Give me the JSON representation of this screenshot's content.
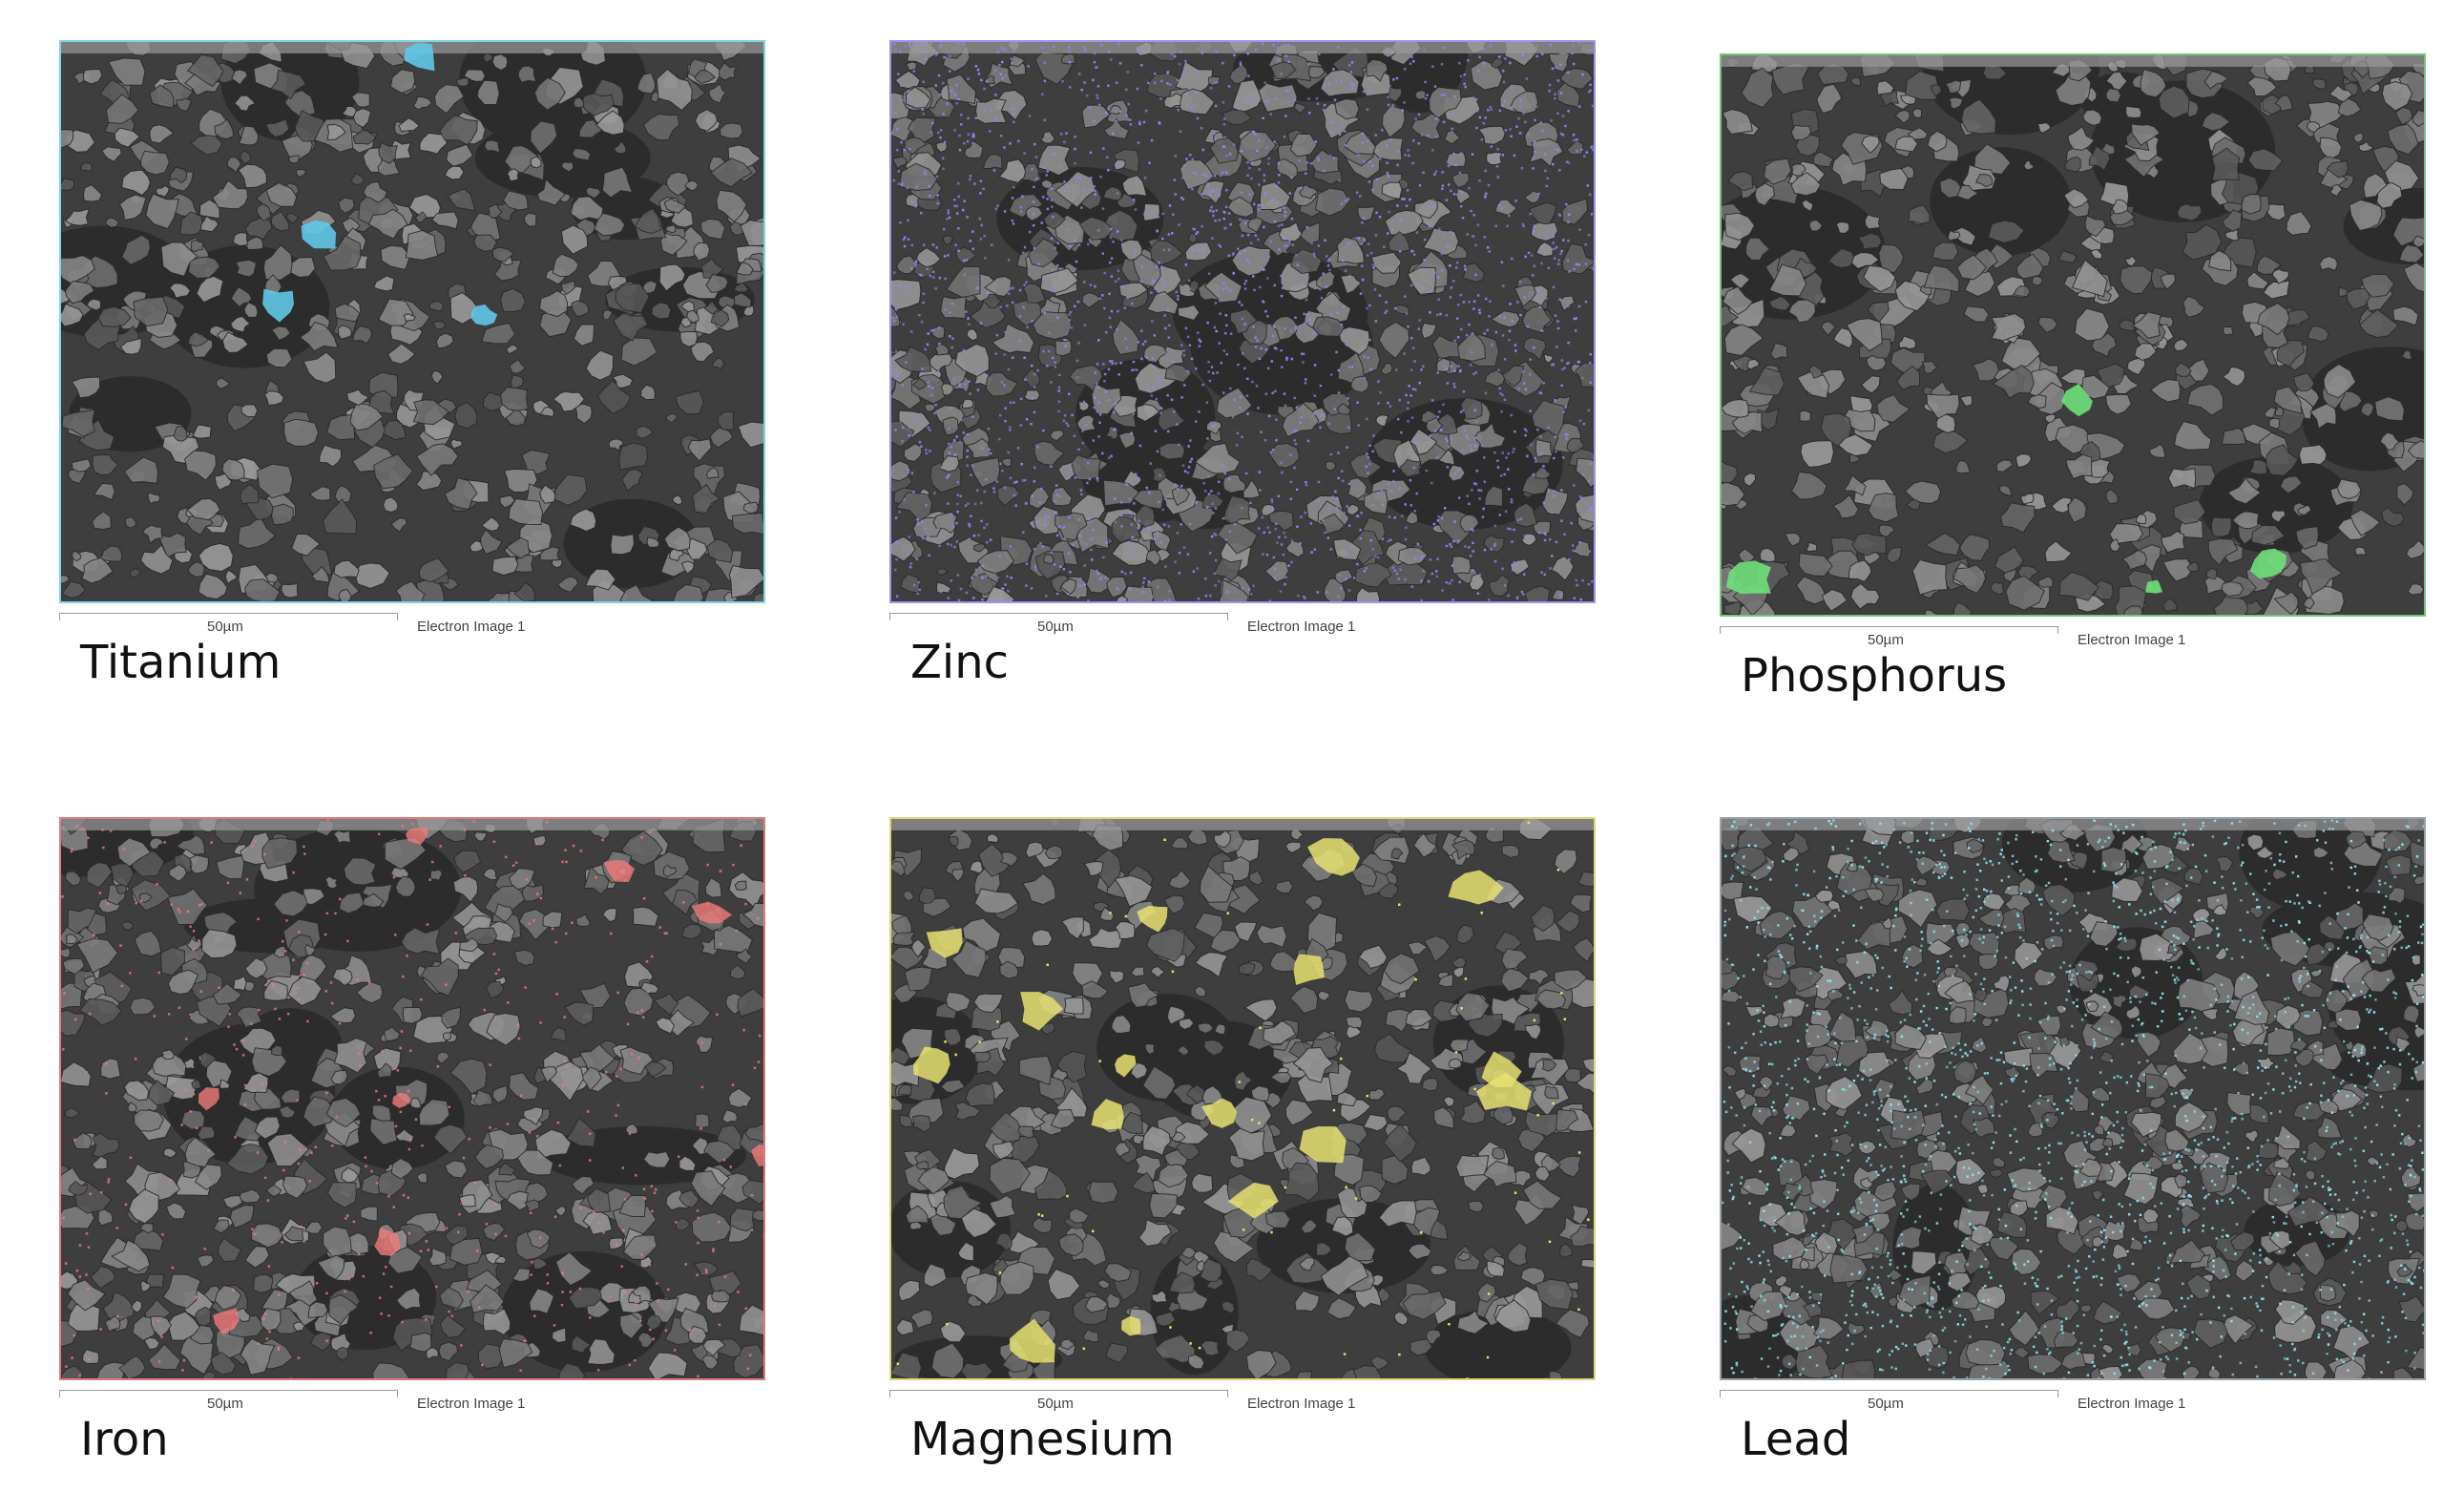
{
  "panels": [
    {
      "element": "Titanium",
      "scale": "50µm",
      "image_label": "Electron Image 1",
      "overlay_color": "#5fc8e8",
      "frame_color": "#7fd0e8",
      "distribution": "sparse-blobs"
    },
    {
      "element": "Zinc",
      "scale": "50µm",
      "image_label": "Electron Image 1",
      "overlay_color": "#8c86f0",
      "frame_color": "#9a96f0",
      "distribution": "dense-dots"
    },
    {
      "element": "Phosphorus",
      "scale": "50µm",
      "image_label": "Electron Image 1",
      "overlay_color": "#6ee07a",
      "frame_color": "#6ec87a",
      "distribution": "sparse-blobs"
    },
    {
      "element": "Iron",
      "scale": "50µm",
      "image_label": "Electron Image 1",
      "overlay_color": "#f07b7b",
      "frame_color": "#e07b7b",
      "distribution": "scattered-dots-and-blobs"
    },
    {
      "element": "Magnesium",
      "scale": "50µm",
      "image_label": "Electron Image 1",
      "overlay_color": "#e6e070",
      "frame_color": "#dcd87a",
      "distribution": "many-blobs"
    },
    {
      "element": "Lead",
      "scale": "50µm",
      "image_label": "Electron Image 1",
      "overlay_color": "#8fe0f0",
      "frame_color": "#9aa0a8",
      "distribution": "dense-dots"
    }
  ]
}
